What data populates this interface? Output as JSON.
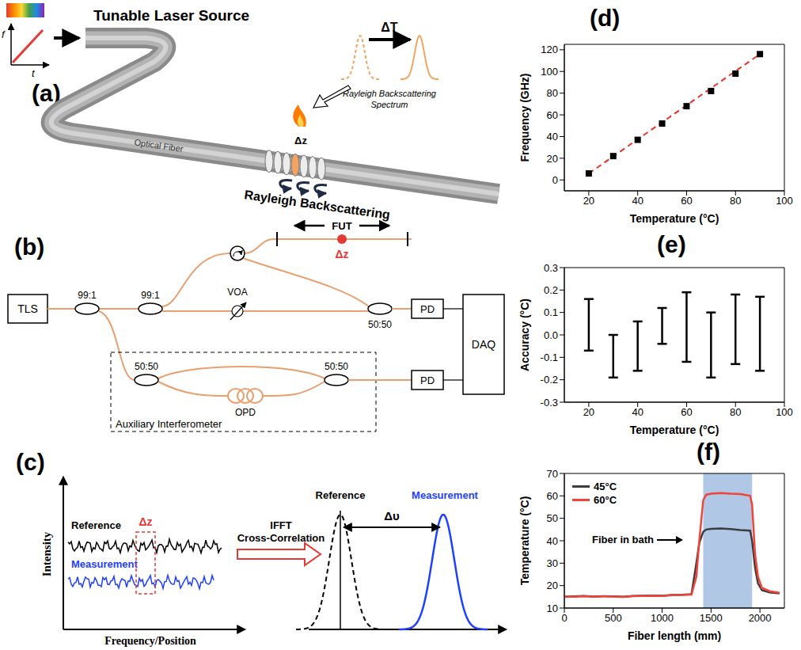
{
  "panels": {
    "a": {
      "label": "(a)",
      "source": "Tunable Laser Source",
      "axis_f": "f",
      "axis_t": "t",
      "fiber": "Optical Fiber",
      "delta_t": "ΔT",
      "spectrum": "Rayleigh Backscattering Spectrum",
      "delta_z": "Δz",
      "backscattering": "Rayleigh Backscattering"
    },
    "b": {
      "label": "(b)",
      "tls": "TLS",
      "coupler_1": "99:1",
      "coupler_2": "99:1",
      "fut": "FUT",
      "delta_z": "Δz",
      "voa": "VOA",
      "coupler_3": "50:50",
      "pd_1": "PD",
      "coupler_4": "50:50",
      "coupler_5": "50:50",
      "opd": "OPD",
      "pd_2": "PD",
      "daq": "DAQ",
      "box": "Auxiliary Interferometer"
    },
    "c": {
      "label": "(c)",
      "y_axis": "Intensity",
      "x_axis": "Frequency/Position",
      "reference": "Reference",
      "measurement": "Measurement",
      "delta_z": "Δz",
      "step_1": "IFFT",
      "step_2": "Cross-Correlation",
      "peak_reference": "Reference",
      "peak_measurement": "Measurement",
      "shift": "Δυ"
    }
  },
  "chart_data": [
    {
      "panel_label": "(d)",
      "type": "scatter",
      "x_label": "Temperature (°C)",
      "y_label": "Frequency (GHz)",
      "xlim": [
        10,
        100
      ],
      "xticks": [
        20,
        40,
        60,
        80,
        100
      ],
      "ylim": [
        -10,
        125
      ],
      "yticks": [
        0,
        20,
        40,
        60,
        80,
        100,
        120
      ],
      "grid": false,
      "series": [
        {
          "type": "scatter",
          "x": [
            20,
            30,
            40,
            50,
            60,
            70,
            80,
            90
          ],
          "values": [
            6,
            22,
            37,
            52,
            68,
            82,
            98,
            116
          ],
          "color": "#000000",
          "marker": "square"
        },
        {
          "type": "line",
          "x": [
            20,
            90
          ],
          "values": [
            6,
            116
          ],
          "color": "#e8322a",
          "line_style": "dashed"
        }
      ]
    },
    {
      "panel_label": "(e)",
      "type": "errorbar",
      "x_label": "Temperature (°C)",
      "y_label": "Accuracy (°C)",
      "xlim": [
        10,
        100
      ],
      "xticks": [
        20,
        40,
        60,
        80,
        100
      ],
      "ylim": [
        -0.3,
        0.3
      ],
      "yticks": [
        -0.3,
        -0.2,
        -0.1,
        {
          "value": 0,
          "label": "0.0"
        },
        0.1,
        0.2,
        0.3
      ],
      "grid": false,
      "x": [
        20,
        30,
        40,
        50,
        60,
        70,
        80,
        90
      ],
      "low": [
        -0.07,
        -0.19,
        -0.16,
        -0.04,
        -0.12,
        -0.19,
        -0.13,
        -0.16
      ],
      "high": [
        0.16,
        0.0,
        0.06,
        0.12,
        0.19,
        0.1,
        0.18,
        0.17
      ],
      "color": "#000000"
    },
    {
      "panel_label": "(f)",
      "type": "line",
      "x_label": "Fiber length (mm)",
      "y_label": "Temperature (°C)",
      "xlim": [
        0,
        2250
      ],
      "xticks": [
        0,
        500,
        1000,
        1500,
        2000
      ],
      "ylim": [
        10,
        70
      ],
      "yticks": [
        10,
        20,
        30,
        40,
        50,
        60,
        70
      ],
      "grid": false,
      "legend": "upper left",
      "x": [
        0,
        100,
        200,
        300,
        400,
        500,
        600,
        700,
        800,
        900,
        1000,
        1100,
        1200,
        1300,
        1350,
        1380,
        1420,
        1450,
        1500,
        1600,
        1700,
        1800,
        1900,
        1920,
        1950,
        1980,
        2020,
        2100,
        2200
      ],
      "series": [
        {
          "name": "45°C",
          "color": "#3d3d3d",
          "values": [
            15,
            15.2,
            15.4,
            15.1,
            15.3,
            15.2,
            15,
            15.4,
            15.5,
            15.6,
            15.5,
            15.8,
            15.9,
            16.2,
            30,
            39,
            44,
            45,
            45.3,
            45.5,
            45.2,
            44.8,
            44.5,
            40,
            28,
            21,
            18,
            17,
            16.5
          ]
        },
        {
          "name": "60°C",
          "color": "#f0433a",
          "values": [
            15,
            15,
            15.3,
            15,
            15.2,
            15.1,
            14.9,
            15.3,
            15.4,
            15.5,
            15.4,
            15.7,
            15.8,
            16,
            24,
            40,
            58,
            60.5,
            61,
            61.3,
            61,
            60.8,
            60,
            56,
            34,
            24,
            19,
            17.5,
            16.8
          ]
        }
      ],
      "annotation": "Fiber in bath",
      "highlight": {
        "x": [
          1420,
          1920
        ],
        "color": "#a9c1e3"
      }
    }
  ]
}
